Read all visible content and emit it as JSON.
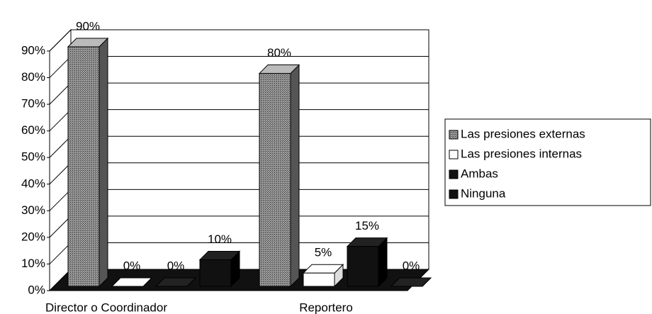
{
  "chart_data": {
    "type": "bar3d",
    "categories": [
      "Director o Coordinador",
      "Reportero"
    ],
    "series": [
      {
        "name": "Las presiones externas",
        "color": "#7a7a7a",
        "values": [
          90,
          80
        ],
        "value_labels": [
          "90%",
          "80%"
        ]
      },
      {
        "name": "Las presiones internas",
        "color": "#ffffff",
        "values": [
          0,
          5
        ],
        "value_labels": [
          "0%",
          "5%"
        ]
      },
      {
        "name": "Ambas",
        "color": "#111111",
        "values": [
          0,
          15
        ],
        "value_labels": [
          "0%",
          "15%"
        ]
      },
      {
        "name": "Ninguna",
        "color": "#111111",
        "values": [
          10,
          0
        ],
        "value_labels": [
          "10%",
          "0%"
        ]
      }
    ],
    "ylim": [
      0,
      90
    ],
    "yticks": [
      {
        "value": 0,
        "label": "0%"
      },
      {
        "value": 10,
        "label": "10%"
      },
      {
        "value": 20,
        "label": "20%"
      },
      {
        "value": 30,
        "label": "30%"
      },
      {
        "value": 40,
        "label": "40%"
      },
      {
        "value": 50,
        "label": "50%"
      },
      {
        "value": 60,
        "label": "60%"
      },
      {
        "value": 70,
        "label": "70%"
      },
      {
        "value": 80,
        "label": "80%"
      },
      {
        "value": 90,
        "label": "90%"
      }
    ],
    "grid": true
  }
}
